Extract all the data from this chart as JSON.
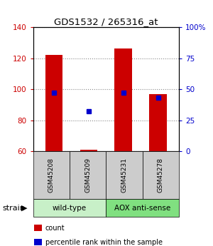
{
  "title": "GDS1532 / 265316_at",
  "samples": [
    "GSM45208",
    "GSM45209",
    "GSM45231",
    "GSM45278"
  ],
  "counts": [
    122,
    61,
    126,
    97
  ],
  "percentiles": [
    47,
    32,
    47,
    43
  ],
  "baseline": 60,
  "ylim_left": [
    60,
    140
  ],
  "ylim_right": [
    0,
    100
  ],
  "yticks_left": [
    60,
    80,
    100,
    120,
    140
  ],
  "yticks_right": [
    0,
    25,
    50,
    75,
    100
  ],
  "bar_color": "#cc0000",
  "dot_color": "#0000cc",
  "bar_width": 0.5,
  "groups": [
    {
      "label": "wild-type",
      "samples": [
        0,
        1
      ],
      "color": "#c8f0c8"
    },
    {
      "label": "AOX anti-sense",
      "samples": [
        2,
        3
      ],
      "color": "#80e080"
    }
  ],
  "strain_label": "strain",
  "legend_items": [
    {
      "color": "#cc0000",
      "label": "count"
    },
    {
      "color": "#0000cc",
      "label": "percentile rank within the sample"
    }
  ],
  "bg_color": "#ffffff",
  "plot_bg": "#ffffff",
  "grid_color": "#888888",
  "tick_label_color_left": "#cc0000",
  "tick_label_color_right": "#0000cc",
  "sample_box_color": "#cccccc"
}
